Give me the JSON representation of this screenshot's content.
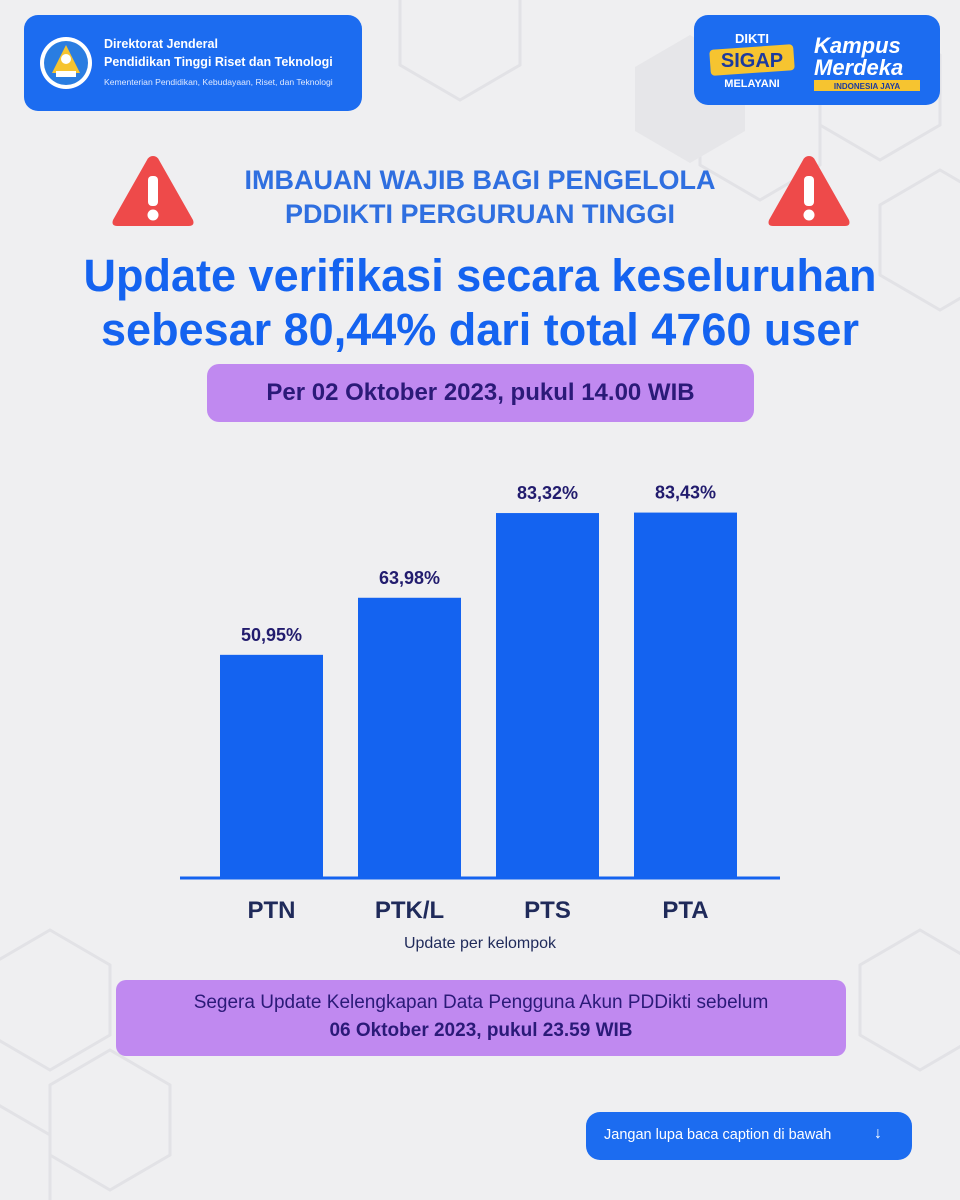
{
  "header": {
    "org_line1": "Direktorat Jenderal",
    "org_line2": "Pendidikan Tinggi Riset dan Teknologi",
    "org_line3": "Kementerian Pendidikan, Kebudayaan, Riset, dan Teknologi",
    "sigap_top": "DIKTI",
    "sigap_mid": "SIGAP",
    "sigap_bottom": "MELAYANI",
    "km_line1": "Kampus",
    "km_line2": "Merdeka",
    "km_line3": "INDONESIA JAYA"
  },
  "advisory": {
    "line1": "IMBAUAN WAJIB BAGI PENGELOLA",
    "line2": "PDDIKTI PERGURUAN TINGGI"
  },
  "headline": {
    "line1": "Update verifikasi secara keseluruhan",
    "line2": "sebesar 80,44% dari total 4760 user"
  },
  "date_label": "Per 02 Oktober 2023, pukul 14.00 WIB",
  "chart_data": {
    "type": "bar",
    "categories": [
      "PTN",
      "PTK/L",
      "PTS",
      "PTA"
    ],
    "values": [
      50.95,
      63.98,
      83.32,
      83.43
    ],
    "value_labels": [
      "50,95%",
      "63,98%",
      "83,32%",
      "83,43%"
    ],
    "xlabel": "Update per kelompok",
    "ylabel": "",
    "ylim": [
      0,
      100
    ],
    "grid": false,
    "bar_color": "#1463f0"
  },
  "deadline": {
    "line1": "Segera Update Kelengkapan Data Pengguna Akun PDDikti sebelum",
    "line2": "06 Oktober 2023, pukul 23.59 WIB"
  },
  "caption_button": {
    "label": "Jangan lupa baca caption di bawah",
    "icon": "arrow-down-icon"
  },
  "colors": {
    "brand_blue": "#1c6cf0",
    "pill_purple": "#c089f0",
    "warning_red": "#ee4a4a"
  }
}
